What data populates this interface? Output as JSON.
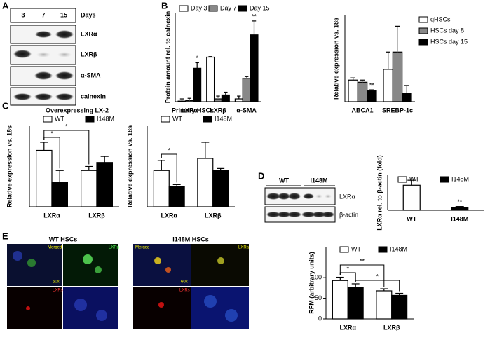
{
  "panel_labels": [
    "A",
    "B",
    "C",
    "D",
    "E"
  ],
  "blot_a": {
    "lanes": [
      "3",
      "7",
      "15"
    ],
    "lanes_title": "Days",
    "bands": [
      "LXRα",
      "LXRβ",
      "α-SMA",
      "calnexin"
    ]
  },
  "blot_d": {
    "groups": [
      "WT",
      "I148M"
    ],
    "bands": [
      "LXRα",
      "β-actin"
    ]
  },
  "images_e": [
    {
      "title": "WT HSCs",
      "tile_labels": [
        "Merged",
        "LXRa",
        "60x",
        "LXRs"
      ]
    },
    {
      "title": "I148M HSCs",
      "tile_labels": [
        "Merged",
        "LXRa",
        "60x",
        "LXRs"
      ]
    }
  ],
  "chart_data": [
    {
      "type": "bar",
      "ylabel": "Protein amount rel. to calnexin",
      "categories": [
        "LXRα",
        "LXRβ",
        "α-SMA"
      ],
      "series": [
        {
          "name": "Day 3",
          "color": "#ffffff",
          "values": [
            0.01,
            0.8,
            0.05
          ],
          "errors": [
            0.04,
            0.01,
            0.05
          ]
        },
        {
          "name": "Day 7",
          "color": "#888888",
          "values": [
            0.02,
            0.05,
            0.42
          ],
          "errors": [
            0.04,
            0.05,
            0.03
          ]
        },
        {
          "name": "Day 15",
          "color": "#000000",
          "values": [
            0.6,
            0.12,
            1.2
          ],
          "errors": [
            0.1,
            0.05,
            0.25
          ]
        }
      ],
      "ylim": [
        0,
        1.6
      ],
      "legend": "top",
      "annotations": [
        "*",
        "**"
      ]
    },
    {
      "type": "bar",
      "ylabel": "Relative expression vs. 18s",
      "categories": [
        "ABCA1",
        "SREBP-1c"
      ],
      "series": [
        {
          "name": "qHSCs",
          "color": "#ffffff",
          "values": [
            1.0,
            1.5
          ],
          "errors": [
            0.1,
            0.8
          ]
        },
        {
          "name": "HSCs day 8",
          "color": "#888888",
          "values": [
            0.9,
            2.3
          ],
          "errors": [
            0.1,
            1.2
          ]
        },
        {
          "name": "HSCs day 15",
          "color": "#000000",
          "values": [
            0.5,
            0.4
          ],
          "errors": [
            0.05,
            0.35
          ]
        }
      ],
      "ylim": [
        0,
        4
      ],
      "legend": "right",
      "annotations": [
        "**"
      ]
    },
    {
      "type": "bar",
      "title": "Overexpressing LX-2",
      "ylabel": "Relative expression vs. 18s",
      "categories": [
        "LXRα",
        "LXRβ"
      ],
      "series": [
        {
          "name": "WT",
          "color": "#ffffff",
          "values": [
            1.4,
            0.9
          ],
          "errors": [
            0.2,
            0.1
          ]
        },
        {
          "name": "I148M",
          "color": "#000000",
          "values": [
            0.6,
            1.1
          ],
          "errors": [
            0.3,
            0.15
          ]
        }
      ],
      "ylim": [
        0,
        2
      ],
      "legend": "top",
      "annotations": [
        "*",
        "*"
      ]
    },
    {
      "type": "bar",
      "title": "Primary HSCs",
      "ylabel": "Relative expression vs. 18s",
      "categories": [
        "LXRα",
        "LXRβ"
      ],
      "series": [
        {
          "name": "WT",
          "color": "#ffffff",
          "values": [
            0.9,
            1.2
          ],
          "errors": [
            0.25,
            0.4
          ]
        },
        {
          "name": "I148M",
          "color": "#000000",
          "values": [
            0.5,
            0.9
          ],
          "errors": [
            0.05,
            0.05
          ]
        }
      ],
      "ylim": [
        0,
        2
      ],
      "legend": "top",
      "annotations": [
        "*"
      ]
    },
    {
      "type": "bar",
      "ylabel": "LXRα rel. to β-actin (fold)",
      "categories": [
        "WT",
        "I148M"
      ],
      "series": [
        {
          "name": "WT",
          "color": "#ffffff",
          "values": [
            1.0,
            null
          ],
          "errors": [
            0.2,
            null
          ]
        },
        {
          "name": "I148M",
          "color": "#000000",
          "values": [
            null,
            0.1
          ],
          "errors": [
            null,
            0.05
          ]
        }
      ],
      "ylim": [
        0,
        1.4
      ],
      "legend": "top",
      "annotations": [
        "**"
      ]
    },
    {
      "type": "bar",
      "ylabel": "RFM (arbitrary units)",
      "categories": [
        "LXRα",
        "LXRβ"
      ],
      "series": [
        {
          "name": "WT",
          "color": "#ffffff",
          "values": [
            93,
            68
          ],
          "errors": [
            8,
            5
          ]
        },
        {
          "name": "I148M",
          "color": "#000000",
          "values": [
            77,
            57
          ],
          "errors": [
            8,
            5
          ]
        }
      ],
      "ylim": [
        0,
        175
      ],
      "yticks": [
        0,
        50,
        100
      ],
      "legend": "top",
      "annotations": [
        "*",
        "**",
        "*"
      ]
    }
  ]
}
